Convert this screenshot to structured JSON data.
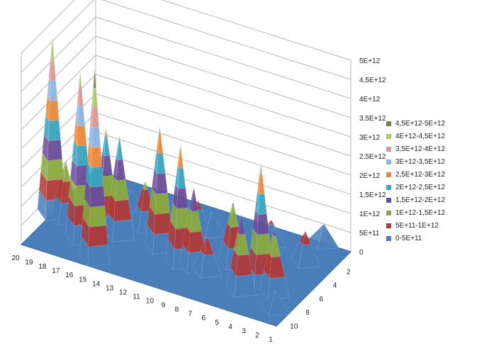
{
  "chart_data": {
    "type": "surface-3d",
    "title": "",
    "z_axis": {
      "min": 0,
      "max": 5000000000000.0,
      "step": 500000000000.0,
      "tick_labels": [
        "0",
        "5E+11",
        "1E+12",
        "1,5E+12",
        "2E+12",
        "2,5E+12",
        "3E+12",
        "3,5E+12",
        "4E+12",
        "4,5E+12",
        "5E+12"
      ]
    },
    "x_axis": {
      "tick_labels": [
        "1",
        "2",
        "3",
        "4",
        "5",
        "6",
        "7",
        "8",
        "9",
        "10",
        "11",
        "12",
        "13",
        "14",
        "15",
        "16",
        "17",
        "18",
        "19",
        "20"
      ]
    },
    "y_axis": {
      "tick_labels": [
        "2",
        "4",
        "6",
        "8",
        "10"
      ]
    },
    "grid": true,
    "legend": {
      "position": "right",
      "entries": [
        {
          "label": "4,5E+12-5E+12",
          "color": "#6f7f4f"
        },
        {
          "label": "4E+12-4,5E+12",
          "color": "#a9c86b"
        },
        {
          "label": "3,5E+12-4E+12",
          "color": "#d99694"
        },
        {
          "label": "3E+12-3,5E+12",
          "color": "#8eb4e3"
        },
        {
          "label": "2,5E+12-3E+12",
          "color": "#e8883a"
        },
        {
          "label": "2E+12-2,5E+12",
          "color": "#3aa3bf"
        },
        {
          "label": "1,5E+12-2E+12",
          "color": "#6b4c9a"
        },
        {
          "label": "1E+12-1,5E+12",
          "color": "#8aaa3e"
        },
        {
          "label": "5E+11-1E+12",
          "color": "#b03a3a"
        },
        {
          "label": "0-5E+11",
          "color": "#4a7ebb"
        }
      ]
    },
    "peaks": [
      {
        "x": 20,
        "y": 5,
        "value": 4600000000000.0
      },
      {
        "x": 17,
        "y": 3,
        "value": 4400000000000.0
      },
      {
        "x": 15,
        "y": 1,
        "value": 5000000000000.0
      },
      {
        "x": 19,
        "y": 5,
        "value": 1500000000000.0
      },
      {
        "x": 18,
        "y": 6,
        "value": 1300000000000.0
      },
      {
        "x": 17,
        "y": 7,
        "value": 1200000000000.0
      },
      {
        "x": 16,
        "y": 5,
        "value": 2700000000000.0
      },
      {
        "x": 15,
        "y": 5,
        "value": 2600000000000.0
      },
      {
        "x": 14,
        "y": 7,
        "value": 1200000000000.0
      },
      {
        "x": 13,
        "y": 7,
        "value": 1000000000000.0
      },
      {
        "x": 12,
        "y": 5,
        "value": 3200000000000.0
      },
      {
        "x": 10,
        "y": 4,
        "value": 3100000000000.0
      },
      {
        "x": 11,
        "y": 9,
        "value": 700000000000.0
      },
      {
        "x": 9,
        "y": 4,
        "value": 2100000000000.0
      },
      {
        "x": 8,
        "y": 4,
        "value": 900000000000.0
      },
      {
        "x": 7,
        "y": 6,
        "value": 1600000000000.0
      },
      {
        "x": 5,
        "y": 3,
        "value": 2000000000000.0
      },
      {
        "x": 4,
        "y": 4,
        "value": 3300000000000.0
      },
      {
        "x": 3,
        "y": 4,
        "value": 1700000000000.0
      },
      {
        "x": 3,
        "y": 9,
        "value": 800000000000.0
      },
      {
        "x": 2,
        "y": 2,
        "value": 500000000000.0
      },
      {
        "x": 6,
        "y": 10,
        "value": 600000000000.0
      },
      {
        "x": 3,
        "y": 12,
        "value": 500000000000.0
      },
      {
        "x": 10,
        "y": 9,
        "value": 500000000000.0
      },
      {
        "x": 16,
        "y": 9,
        "value": 400000000000.0
      }
    ]
  }
}
